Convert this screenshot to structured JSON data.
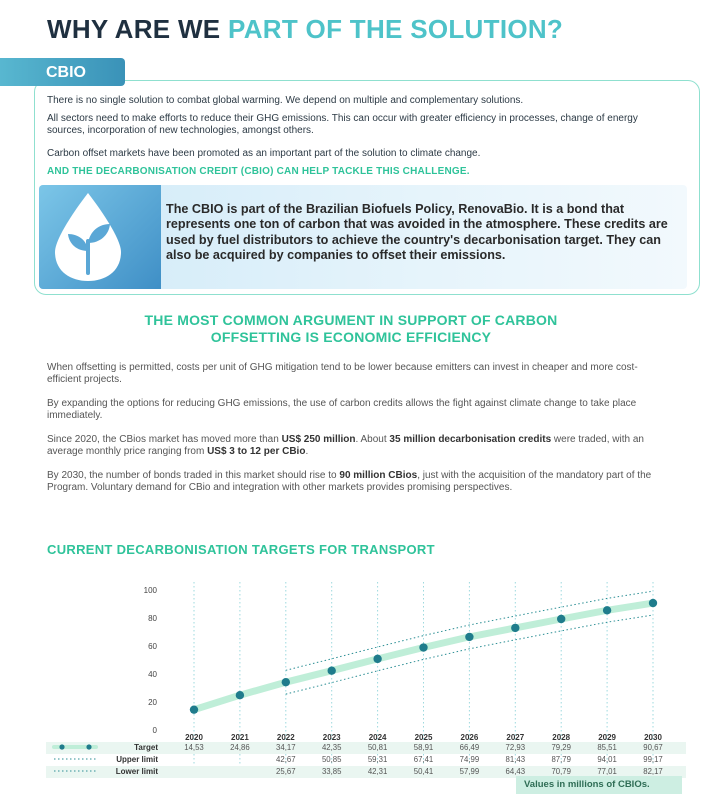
{
  "header": {
    "title_dark": "WHY ARE WE",
    "title_accent": "PART OF THE SOLUTION?"
  },
  "cbio": {
    "tab_label": "CBIO",
    "paragraphs": [
      "There is no single solution to combat global warming. We depend on multiple and complementary solutions.",
      "All sectors need to make efforts to reduce their GHG emissions. This can occur with greater efficiency in processes, change of energy sources, incorporation of new technologies, amongst others.",
      "Carbon offset markets have been promoted as an important part of the solution to climate change."
    ],
    "highlight": "AND THE DECARBONISATION CREDIT (CBIO) CAN HELP TACKLE THIS CHALLENGE.",
    "callout": "The CBIO is part of the Brazilian Biofuels Policy, RenovaBio. It is a bond that represents one ton of carbon that was avoided in the atmosphere. These credits are used by fuel distributors to achieve the country's decarbonisation target. They can also be acquired by companies to offset their emissions."
  },
  "argument": {
    "heading_line1": "THE MOST COMMON ARGUMENT IN SUPPORT OF CARBON",
    "heading_line2": "OFFSETTING IS ECONOMIC EFFICIENCY",
    "p1": "When offsetting is permitted, costs per unit of GHG mitigation tend to be lower because emitters can invest in cheaper and more cost-efficient projects.",
    "p2": "By expanding the options for reducing GHG emissions, the use of carbon credits allows the fight against climate change to take place immediately.",
    "p3_a": "Since 2020, the CBios market has moved more than ",
    "p3_b": "US$ 250 million",
    "p3_c": ". About ",
    "p3_d": "35 million decarbonisation credits",
    "p3_e": " were traded, with an average monthly price ranging from ",
    "p3_f": "US$ 3 to 12 per CBio",
    "p3_g": ".",
    "p4_a": "By 2030, the number of bonds traded in this market should rise to ",
    "p4_b": "90 million CBios",
    "p4_c": ", just with the acquisition of the mandatory part of the Program. Voluntary demand for CBio and integration with other markets provides promising perspectives."
  },
  "chart": {
    "title": "CURRENT DECARBONISATION TARGETS FOR TRANSPORT",
    "note": "Values in millions of CBIOs."
  },
  "chart_data": {
    "type": "line",
    "title": "CURRENT DECARBONISATION TARGETS FOR TRANSPORT",
    "ylim": [
      0,
      100
    ],
    "yticks": [
      "0",
      "20",
      "40",
      "60",
      "80",
      "100"
    ],
    "categories": [
      "2020",
      "2021",
      "2022",
      "2023",
      "2024",
      "2025",
      "2026",
      "2027",
      "2028",
      "2029",
      "2030"
    ],
    "series": [
      {
        "name": "Target",
        "values": [
          14.53,
          24.86,
          34.17,
          42.35,
          50.81,
          58.91,
          66.49,
          72.93,
          79.29,
          85.51,
          90.67
        ],
        "labels": [
          "14,53",
          "24,86",
          "34,17",
          "42,35",
          "50,81",
          "58,91",
          "66,49",
          "72,93",
          "79,29",
          "85,51",
          "90,67"
        ]
      },
      {
        "name": "Upper limit",
        "values": [
          null,
          null,
          42.67,
          50.85,
          59.31,
          67.41,
          74.99,
          81.43,
          87.79,
          94.01,
          99.17
        ],
        "labels": [
          "",
          "",
          "42,67",
          "50,85",
          "59,31",
          "67,41",
          "74,99",
          "81,43",
          "87,79",
          "94,01",
          "99,17"
        ]
      },
      {
        "name": "Lower limit",
        "values": [
          null,
          null,
          25.67,
          33.85,
          42.31,
          50.41,
          57.99,
          64.43,
          70.79,
          77.01,
          82.17
        ],
        "labels": [
          "",
          "",
          "25,67",
          "33,85",
          "42,31",
          "50,41",
          "57,99",
          "64,43",
          "70,79",
          "77,01",
          "82,17"
        ]
      }
    ],
    "note": "Values in millions of CBIOs.",
    "colors": {
      "target_line": "#bfeed8",
      "marker": "#1f7c8c",
      "limit": "#2d8f95",
      "grid": "#9dd9de"
    }
  }
}
